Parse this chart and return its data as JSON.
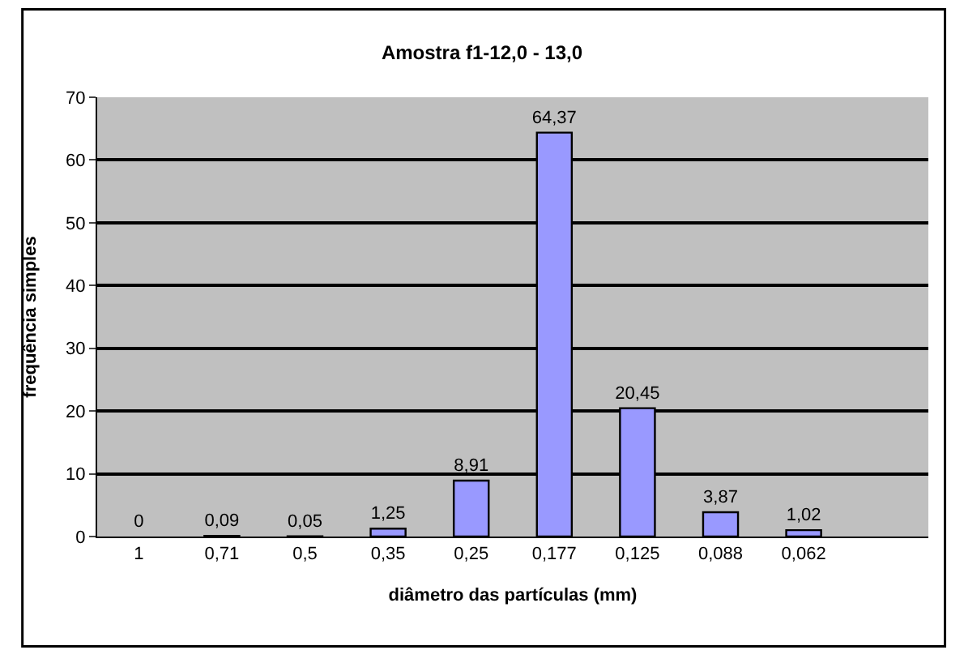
{
  "chart_data": {
    "type": "bar",
    "title": "Amostra f1-12,0 - 13,0",
    "xlabel": "diâmetro das partículas (mm)",
    "ylabel": "frequência simples",
    "categories": [
      "1",
      "0,71",
      "0,5",
      "0,35",
      "0,25",
      "0,177",
      "0,125",
      "0,088",
      "0,062",
      null
    ],
    "values": [
      0,
      0.09,
      0.05,
      1.25,
      8.91,
      64.37,
      20.45,
      3.87,
      1.02,
      null
    ],
    "value_labels": [
      "0",
      "0,09",
      "0,05",
      "1,25",
      "8,91",
      "64,37",
      "20,45",
      "3,87",
      "1,02",
      null
    ],
    "color": "#9999ff",
    "ylim": [
      0,
      70
    ],
    "yticks": [
      0,
      10,
      20,
      30,
      40,
      50,
      60,
      70
    ],
    "grid": "y",
    "legend": false
  }
}
